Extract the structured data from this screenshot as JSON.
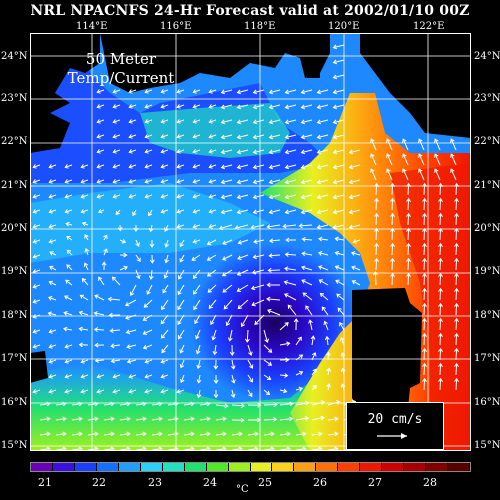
{
  "title": "NRL NPACNFS 24-Hr Forecast valid at 2002/01/10 00Z",
  "panel_label_line1": "50 Meter",
  "panel_label_line2": "Temp/Current",
  "reference_vector": "20 cm/s",
  "lon_labels": [
    "114°E",
    "116°E",
    "118°E",
    "120°E",
    "122°E"
  ],
  "lat_labels": [
    "24°N",
    "23°N",
    "22°N",
    "21°N",
    "20°N",
    "19°N",
    "18°N",
    "17°N",
    "16°N",
    "15°N"
  ],
  "colorbar": {
    "labels": [
      "21",
      "22",
      "23",
      "24",
      "25",
      "26",
      "27",
      "28"
    ],
    "unit": "°C",
    "colors": [
      "#6a00b8",
      "#3a10e0",
      "#1a40ff",
      "#1470ff",
      "#1ea0ff",
      "#2ad0f8",
      "#22e0c0",
      "#20e070",
      "#50e828",
      "#a0f020",
      "#e8f020",
      "#ffd018",
      "#ffa010",
      "#ff7008",
      "#ff4000",
      "#ee1800",
      "#d00000",
      "#a80000",
      "#800000",
      "#580000"
    ]
  }
}
